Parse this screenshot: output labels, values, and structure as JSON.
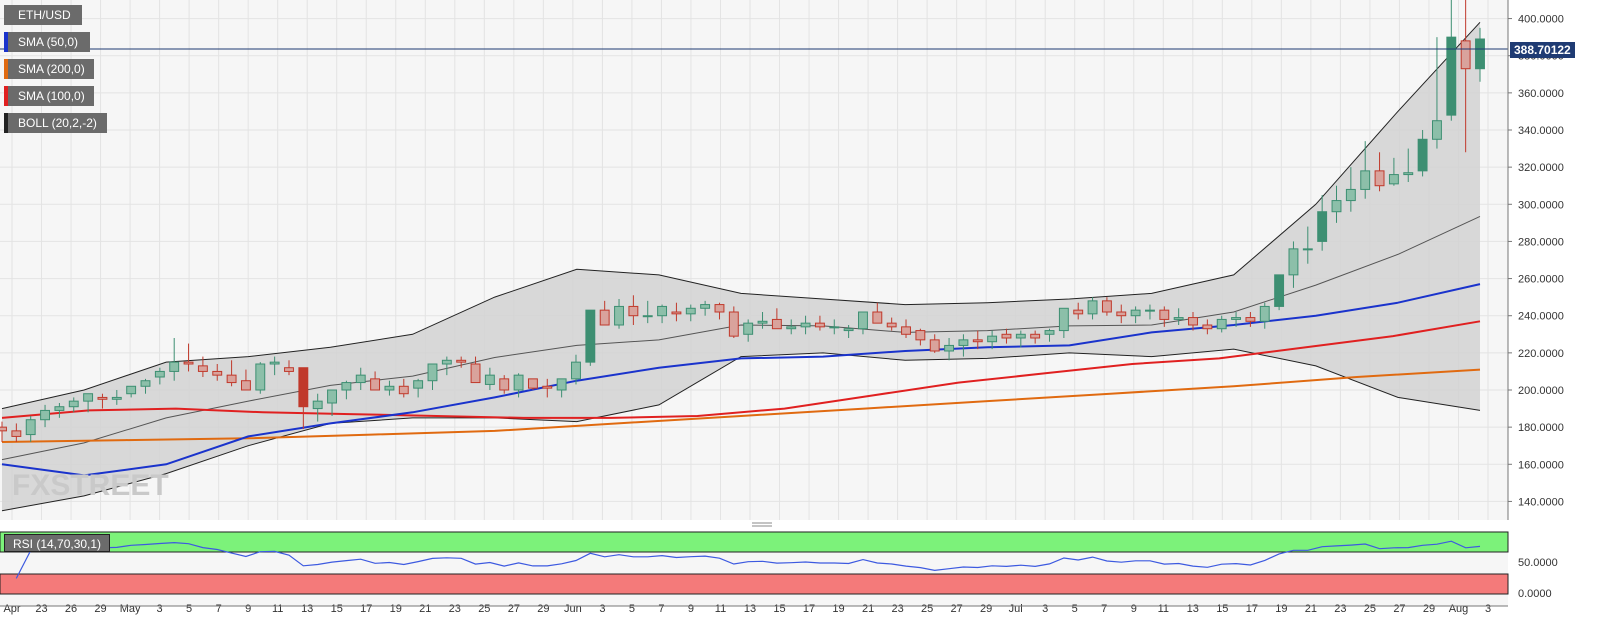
{
  "legend": {
    "symbol": "ETH/USD",
    "indicators": [
      {
        "label": "SMA (50,0)",
        "color": "#1a33cc"
      },
      {
        "label": "SMA (200,0)",
        "color": "#e06a10"
      },
      {
        "label": "SMA (100,0)",
        "color": "#e02020"
      },
      {
        "label": "BOLL (20,2,-2)",
        "color": "#222222"
      }
    ]
  },
  "watermark": "FXSTREET",
  "last_price": "388.70122",
  "rsi": {
    "label": "RSI (14,70,30,1)",
    "overbought": 70,
    "oversold": 30,
    "ticks": [
      "50.0000",
      "0.0000"
    ]
  },
  "colors": {
    "bull": "#3d8f72",
    "bull_fill": "#8cbfa9",
    "bear": "#c0392b",
    "bear_fill": "#d9a39c",
    "price_line": "#1f3b73"
  },
  "chart_data": {
    "type": "candlestick",
    "title": "ETH/USD",
    "ylim": [
      130,
      410
    ],
    "y_ticks": [
      "140.0000",
      "160.0000",
      "180.0000",
      "200.0000",
      "220.0000",
      "240.0000",
      "260.0000",
      "280.0000",
      "300.0000",
      "320.0000",
      "340.0000",
      "360.0000",
      "380.0000",
      "400.0000"
    ],
    "x_ticks": [
      "Apr",
      "23",
      "26",
      "29",
      "May",
      "3",
      "5",
      "7",
      "9",
      "11",
      "13",
      "15",
      "17",
      "19",
      "21",
      "23",
      "25",
      "27",
      "29",
      "Jun",
      "3",
      "5",
      "7",
      "9",
      "11",
      "13",
      "15",
      "17",
      "19",
      "21",
      "23",
      "25",
      "27",
      "29",
      "Jul",
      "3",
      "5",
      "7",
      "9",
      "11",
      "13",
      "15",
      "17",
      "19",
      "21",
      "23",
      "25",
      "27",
      "29",
      "Aug",
      "3"
    ],
    "ohlc": [
      [
        180,
        183,
        172,
        178
      ],
      [
        178,
        182,
        172,
        175
      ],
      [
        176,
        186,
        172,
        184
      ],
      [
        184,
        192,
        180,
        189
      ],
      [
        189,
        193,
        185,
        191
      ],
      [
        191,
        196,
        188,
        194
      ],
      [
        194,
        197,
        188,
        198
      ],
      [
        196,
        198,
        190,
        195
      ],
      [
        195,
        200,
        192,
        196
      ],
      [
        198,
        202,
        196,
        202
      ],
      [
        202,
        206,
        198,
        205
      ],
      [
        207,
        212,
        203,
        210
      ],
      [
        210,
        228,
        205,
        215
      ],
      [
        215,
        225,
        210,
        214
      ],
      [
        213,
        218,
        207,
        210
      ],
      [
        210,
        214,
        205,
        208
      ],
      [
        208,
        216,
        202,
        204
      ],
      [
        205,
        211,
        200,
        200
      ],
      [
        200,
        215,
        198,
        214
      ],
      [
        214,
        218,
        208,
        215
      ],
      [
        212,
        216,
        208,
        210
      ],
      [
        212,
        212,
        179,
        191
      ],
      [
        190,
        198,
        183,
        194
      ],
      [
        193,
        200,
        186,
        200
      ],
      [
        200,
        205,
        195,
        204
      ],
      [
        204,
        212,
        200,
        208
      ],
      [
        206,
        210,
        200,
        200
      ],
      [
        200,
        205,
        197,
        202
      ],
      [
        202,
        206,
        196,
        198
      ],
      [
        201,
        206,
        196,
        205
      ],
      [
        205,
        212,
        200,
        214
      ],
      [
        214,
        218,
        208,
        216
      ],
      [
        216,
        218,
        212,
        215
      ],
      [
        214,
        218,
        205,
        204
      ],
      [
        203,
        212,
        200,
        208
      ],
      [
        206,
        208,
        198,
        200
      ],
      [
        200,
        209,
        196,
        208
      ],
      [
        206,
        206,
        200,
        201
      ],
      [
        202,
        206,
        196,
        201
      ],
      [
        200,
        206,
        196,
        206
      ],
      [
        206,
        219,
        203,
        215
      ],
      [
        215,
        243,
        213,
        243
      ],
      [
        243,
        248,
        236,
        235
      ],
      [
        235,
        249,
        233,
        245
      ],
      [
        245,
        251,
        235,
        240
      ],
      [
        240,
        248,
        236,
        240
      ],
      [
        240,
        246,
        236,
        245
      ],
      [
        242,
        247,
        237,
        241
      ],
      [
        241,
        246,
        237,
        244
      ],
      [
        244,
        248,
        240,
        246
      ],
      [
        246,
        247,
        238,
        242
      ],
      [
        242,
        245,
        228,
        229
      ],
      [
        230,
        238,
        226,
        236
      ],
      [
        236,
        242,
        233,
        237
      ],
      [
        238,
        244,
        234,
        233
      ],
      [
        233,
        238,
        230,
        234
      ],
      [
        234,
        240,
        230,
        236
      ],
      [
        236,
        240,
        232,
        234
      ],
      [
        234,
        238,
        230,
        234
      ],
      [
        232,
        235,
        228,
        233
      ],
      [
        233,
        242,
        230,
        242
      ],
      [
        242,
        247,
        238,
        236
      ],
      [
        236,
        239,
        232,
        234
      ],
      [
        234,
        238,
        228,
        230
      ],
      [
        232,
        233,
        224,
        227
      ],
      [
        227,
        230,
        220,
        221
      ],
      [
        221,
        228,
        216,
        224
      ],
      [
        224,
        230,
        218,
        227
      ],
      [
        227,
        232,
        222,
        226
      ],
      [
        226,
        232,
        222,
        229
      ],
      [
        230,
        233,
        225,
        228
      ],
      [
        228,
        232,
        223,
        230
      ],
      [
        230,
        232,
        225,
        228
      ],
      [
        230,
        233,
        226,
        232
      ],
      [
        232,
        244,
        228,
        244
      ],
      [
        243,
        247,
        238,
        241
      ],
      [
        241,
        250,
        238,
        248
      ],
      [
        248,
        250,
        240,
        242
      ],
      [
        242,
        246,
        236,
        240
      ],
      [
        240,
        245,
        236,
        243
      ],
      [
        243,
        246,
        238,
        243
      ],
      [
        243,
        245,
        234,
        238
      ],
      [
        238,
        244,
        235,
        239
      ],
      [
        239,
        242,
        232,
        235
      ],
      [
        235,
        238,
        230,
        233
      ],
      [
        233,
        240,
        231,
        238
      ],
      [
        238,
        242,
        234,
        239
      ],
      [
        239,
        242,
        234,
        237
      ],
      [
        237,
        247,
        233,
        245
      ],
      [
        245,
        262,
        243,
        262
      ],
      [
        262,
        280,
        255,
        276
      ],
      [
        276,
        288,
        268,
        276
      ],
      [
        280,
        305,
        275,
        296
      ],
      [
        296,
        310,
        290,
        302
      ],
      [
        302,
        320,
        296,
        308
      ],
      [
        308,
        334,
        303,
        318
      ],
      [
        318,
        328,
        307,
        310
      ],
      [
        311,
        325,
        310,
        316
      ],
      [
        316,
        330,
        312,
        317
      ],
      [
        318,
        340,
        315,
        335
      ],
      [
        335,
        390,
        330,
        345
      ],
      [
        348,
        410,
        345,
        390
      ],
      [
        388,
        415,
        328,
        373
      ],
      [
        373,
        395,
        366,
        389
      ]
    ],
    "series": [
      {
        "name": "SMA (50,0)",
        "values_approx": [
          160,
          154,
          160,
          175,
          182,
          188,
          196,
          205,
          212,
          217,
          218,
          221,
          223,
          224,
          231,
          235,
          240,
          247,
          257
        ]
      },
      {
        "name": "SMA (100,0)",
        "values_approx": [
          185,
          189,
          190,
          188,
          187,
          186,
          185,
          185,
          186,
          190,
          197,
          204,
          209,
          214,
          217,
          223,
          229,
          237
        ]
      },
      {
        "name": "SMA (200,0)",
        "values_approx": [
          172,
          173,
          174,
          176,
          178,
          182,
          186,
          190,
          194,
          198,
          202,
          207,
          211
        ]
      },
      {
        "name": "BOLL (20,2,-2)",
        "upper_approx": [
          190,
          200,
          215,
          218,
          223,
          230,
          250,
          265,
          262,
          252,
          249,
          246,
          247,
          249,
          252,
          262,
          300,
          350,
          398
        ],
        "lower_approx": [
          135,
          143,
          155,
          170,
          182,
          185,
          185,
          183,
          192,
          218,
          220,
          216,
          217,
          220,
          218,
          222,
          213,
          196,
          189
        ]
      }
    ]
  }
}
